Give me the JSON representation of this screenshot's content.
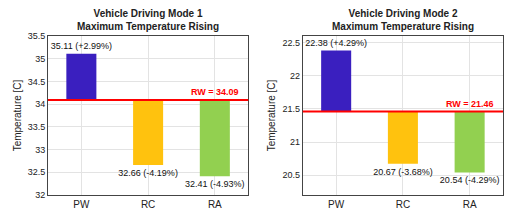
{
  "chart_data": [
    {
      "type": "bar",
      "title": "Vehicle Driving Mode 1\nMaximum Temperature Rising",
      "y_label": "Temperature [C]",
      "categories": [
        "PW",
        "RC",
        "RA"
      ],
      "values": [
        35.11,
        32.66,
        32.41
      ],
      "value_labels": [
        "35.11 (+2.99%)",
        "32.66 (-4.19%)",
        "32.41 (-4.93%)"
      ],
      "colors": [
        "#3a1fbf",
        "#ffc20e",
        "#92d050"
      ],
      "reference": {
        "value": 34.09,
        "label": "RW = 34.09",
        "color": "#ff0000"
      },
      "ylim": [
        32,
        35.5
      ],
      "yticks": [
        32,
        32.5,
        33,
        33.5,
        34,
        34.5,
        35,
        35.5
      ],
      "grid": true,
      "data_labels": true
    },
    {
      "type": "bar",
      "title": "Vehicle Driving Mode 2\nMaximum Temperature Rising",
      "y_label": "Temperature [C]",
      "categories": [
        "PW",
        "RC",
        "RA"
      ],
      "values": [
        22.38,
        20.67,
        20.54
      ],
      "value_labels": [
        "22.38 (+4.29%)",
        "20.67 (-3.68%)",
        "20.54 (-4.29%)"
      ],
      "colors": [
        "#3a1fbf",
        "#ffc20e",
        "#92d050"
      ],
      "reference": {
        "value": 21.46,
        "label": "RW = 21.46",
        "color": "#ff0000"
      },
      "ylim": [
        20.2,
        22.6
      ],
      "yticks": [
        20.5,
        21,
        21.5,
        22,
        22.5
      ],
      "grid": true,
      "data_labels": true
    }
  ]
}
